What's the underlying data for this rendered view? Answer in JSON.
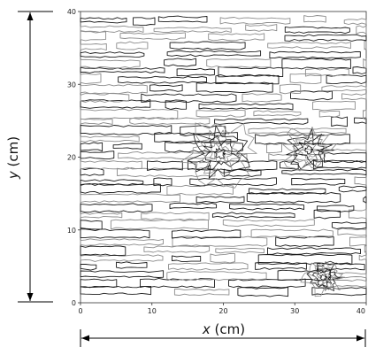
{
  "chart_data": {
    "type": "contour",
    "title": "",
    "xlabel_var": "x",
    "xlabel_unit": "(cm)",
    "ylabel_var": "y",
    "ylabel_unit": "(cm)",
    "xlim": [
      0,
      40
    ],
    "ylim": [
      0,
      40
    ],
    "xticks": [
      "0",
      "10",
      "20",
      "30",
      "40"
    ],
    "yticks": [
      "0",
      "10",
      "20",
      "30",
      "40"
    ],
    "x_tick_values": [
      0,
      10,
      20,
      30,
      40
    ],
    "y_tick_values": [
      0,
      10,
      20,
      30,
      40
    ],
    "grid": false,
    "line_colors": [
      "#1a1a1a",
      "#8c8c8c"
    ],
    "band_y": [
      1.5,
      2.6,
      3.8,
      5.0,
      6.1,
      7.3,
      8.5,
      9.6,
      10.8,
      12.0,
      13.1,
      14.3,
      15.5,
      16.6,
      17.8,
      19.0,
      20.1,
      21.3,
      22.5,
      23.6,
      24.8,
      26.0,
      27.1,
      28.3,
      29.5,
      30.6,
      31.8,
      33.0,
      34.1,
      35.3,
      36.5,
      37.6,
      38.8
    ],
    "anomalies": [
      {
        "x": 19.5,
        "y": 20.5,
        "radius": 4.5
      },
      {
        "x": 32.0,
        "y": 21.0,
        "radius": 3.2
      },
      {
        "x": 34.0,
        "y": 3.5,
        "radius": 2.5
      }
    ]
  }
}
